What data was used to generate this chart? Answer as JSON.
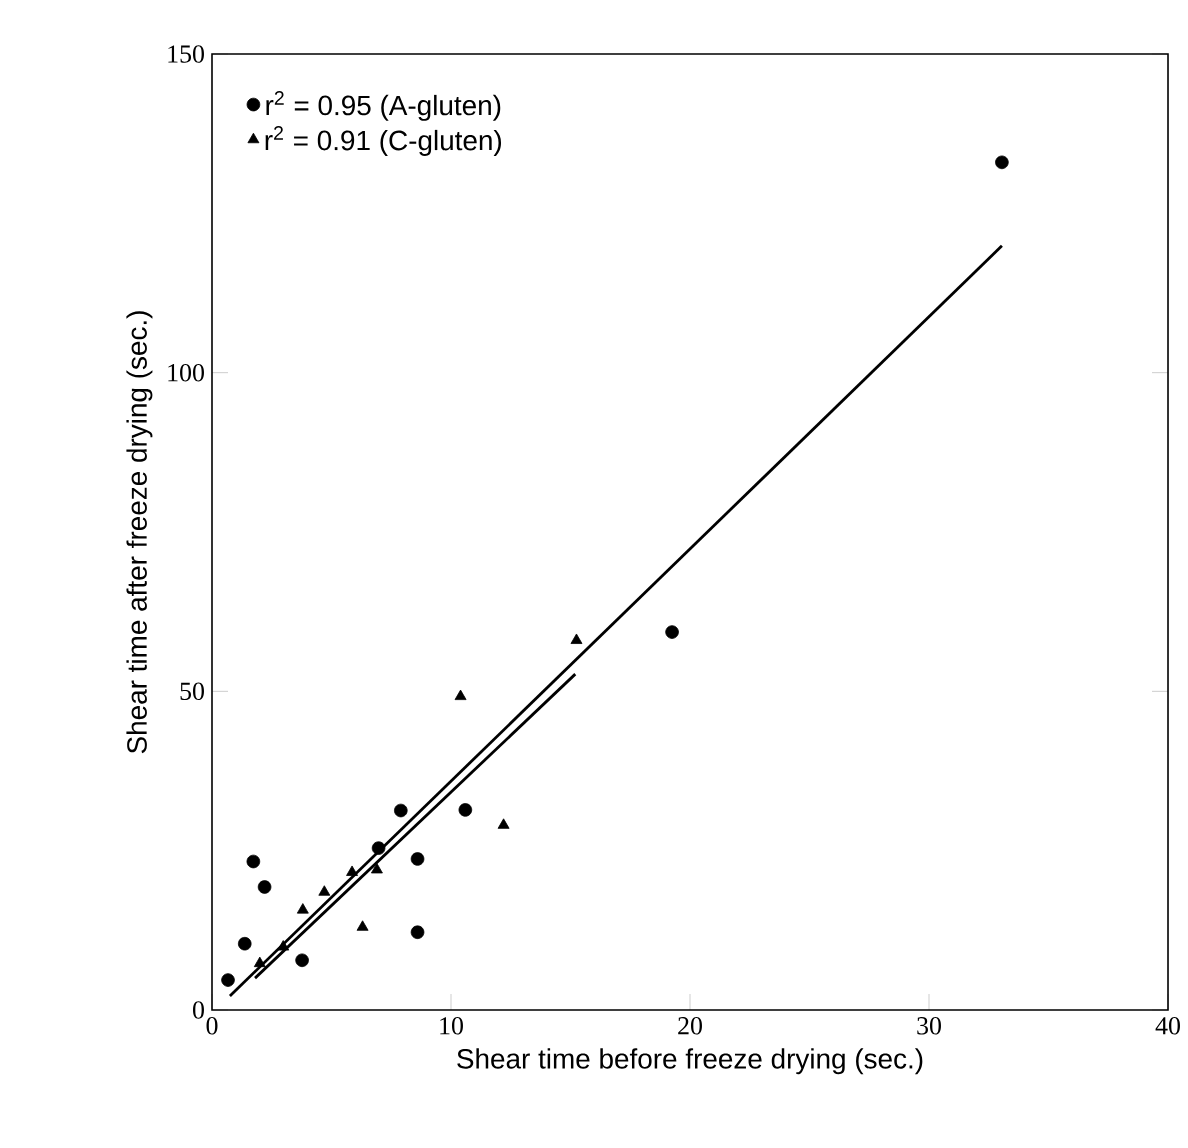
{
  "chart_data": {
    "type": "scatter",
    "xlabel": "Shear time before freeze drying (sec.)",
    "ylabel": "Shear time after freeze drying (sec.)",
    "xlim": [
      0,
      40
    ],
    "ylim": [
      0,
      150
    ],
    "xticks": [
      0,
      10,
      20,
      30,
      40
    ],
    "yticks": [
      0,
      50,
      100,
      150
    ],
    "grid": false,
    "legend": "top left",
    "series": [
      {
        "name": "r$^{2}$ = 0.95 (A-gluten)",
        "color": "#000000",
        "marker": "circle",
        "x": [
          0.67,
          1.37,
          1.73,
          2.2,
          3.77,
          6.97,
          7.9,
          8.6,
          8.6,
          10.6,
          19.25,
          33.05
        ],
        "values": [
          4.7,
          10.4,
          23.3,
          19.3,
          7.8,
          25.4,
          31.3,
          23.7,
          12.2,
          31.4,
          59.3,
          133
        ]
      },
      {
        "name": "r$^{2}$ = 0.91 (C-gluten)",
        "color": "#000000",
        "marker": "triangle",
        "x": [
          2.0,
          2.98,
          3.8,
          4.7,
          5.86,
          6.9,
          6.3,
          10.4,
          12.2,
          15.25
        ],
        "values": [
          7.3,
          9.9,
          15.7,
          18.5,
          21.6,
          22,
          13,
          49.2,
          29,
          58
        ]
      },
      {
        "type": "line",
        "color": "#000000",
        "marker": "none",
        "x": [
          0.75,
          33.05
        ],
        "values": [
          2.2,
          119.9
        ]
      },
      {
        "type": "line",
        "color": "#000000",
        "marker": "none",
        "x": [
          1.8,
          15.2
        ],
        "values": [
          5,
          52.7
        ]
      }
    ]
  }
}
